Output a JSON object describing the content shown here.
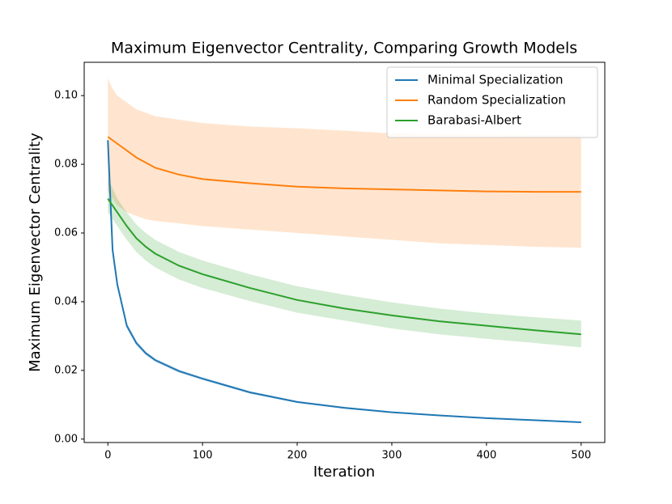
{
  "chart_data": {
    "type": "line",
    "title": "Maximum Eigenvector Centrality, Comparing Growth Models",
    "x_label": "Iteration",
    "y_label": "Maximum Eigenvector Centrality",
    "x": [
      0,
      5,
      10,
      20,
      30,
      40,
      50,
      75,
      100,
      150,
      200,
      250,
      300,
      350,
      400,
      450,
      500
    ],
    "series": [
      {
        "name": "Minimal Specialization",
        "color": "#1f77b4",
        "values": [
          0.087,
          0.055,
          0.045,
          0.033,
          0.028,
          0.025,
          0.023,
          0.0198,
          0.0176,
          0.0136,
          0.0108,
          0.0091,
          0.0078,
          0.0069,
          0.0061,
          0.0055,
          0.0049
        ],
        "lower": [
          0.086,
          0.054,
          0.044,
          0.0322,
          0.0273,
          0.0244,
          0.0225,
          0.0193,
          0.0172,
          0.0132,
          0.0105,
          0.0088,
          0.0076,
          0.0067,
          0.0059,
          0.0053,
          0.0047
        ],
        "upper": [
          0.088,
          0.056,
          0.046,
          0.0338,
          0.0287,
          0.0256,
          0.0235,
          0.0203,
          0.018,
          0.014,
          0.0111,
          0.0094,
          0.008,
          0.0071,
          0.0063,
          0.0057,
          0.0051
        ]
      },
      {
        "name": "Random Specialization",
        "color": "#ff7f0e",
        "values": [
          0.088,
          0.087,
          0.086,
          0.084,
          0.082,
          0.0805,
          0.079,
          0.077,
          0.0757,
          0.0745,
          0.0735,
          0.073,
          0.0727,
          0.0724,
          0.0721,
          0.072,
          0.072
        ],
        "lower": [
          0.072,
          0.07,
          0.068,
          0.066,
          0.065,
          0.064,
          0.0635,
          0.0628,
          0.062,
          0.061,
          0.06,
          0.059,
          0.058,
          0.057,
          0.0565,
          0.056,
          0.0557
        ],
        "upper": [
          0.105,
          0.102,
          0.1,
          0.098,
          0.096,
          0.095,
          0.094,
          0.093,
          0.092,
          0.091,
          0.0905,
          0.0898,
          0.089,
          0.0888,
          0.0886,
          0.0885,
          0.0885
        ]
      },
      {
        "name": "Barabasi-Albert",
        "color": "#2ca02c",
        "values": [
          0.07,
          0.068,
          0.066,
          0.062,
          0.0585,
          0.056,
          0.054,
          0.0505,
          0.048,
          0.044,
          0.0405,
          0.038,
          0.036,
          0.0343,
          0.033,
          0.0317,
          0.0305
        ],
        "lower": [
          0.066,
          0.064,
          0.062,
          0.058,
          0.0545,
          0.052,
          0.05,
          0.0465,
          0.044,
          0.0402,
          0.0368,
          0.0345,
          0.0322,
          0.0305,
          0.0292,
          0.028,
          0.0267
        ],
        "upper": [
          0.076,
          0.073,
          0.07,
          0.066,
          0.0625,
          0.06,
          0.058,
          0.0545,
          0.052,
          0.048,
          0.0445,
          0.042,
          0.0398,
          0.038,
          0.0366,
          0.0355,
          0.0345
        ]
      }
    ],
    "xlim": [
      -25,
      525
    ],
    "ylim": [
      -0.001,
      0.1097
    ],
    "xticks": [
      0,
      100,
      200,
      300,
      400,
      500
    ],
    "yticks": [
      {
        "value": 0,
        "label": "0.00"
      },
      {
        "value": 0.02,
        "label": "0.02"
      },
      {
        "value": 0.04,
        "label": "0.04"
      },
      {
        "value": 0.06,
        "label": "0.06"
      },
      {
        "value": 0.08,
        "label": "0.08"
      },
      {
        "value": 0.1,
        "label": "0.10"
      }
    ],
    "legend_position": "upper right"
  }
}
